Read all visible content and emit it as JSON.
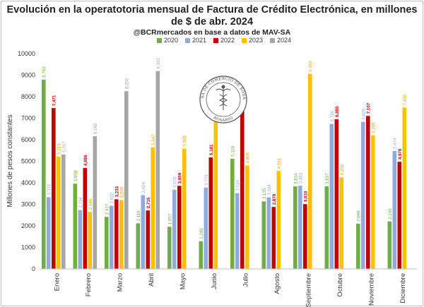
{
  "chart_data": {
    "type": "bar",
    "title": "Evolución en la operatotoria mensual de Factura de Crédito Electrónica, en millones de $ de abr. 2024",
    "subtitle": "@BCRmercados en base a datos de MAV-SA",
    "ylabel": "Millones de pesos constantes",
    "xlabel": "",
    "ylim": [
      0,
      10000
    ],
    "yticks": [
      "0",
      "1000",
      "2000",
      "3000",
      "4000",
      "5000",
      "6000",
      "7000",
      "8000",
      "9000",
      "10000"
    ],
    "grid": false,
    "legend_position": "top-center",
    "categories": [
      "Enero",
      "Febrero",
      "Marzo",
      "Abril",
      "Mayo",
      "Junio",
      "Julio",
      "Agosto",
      "Septiembre",
      "Octubre",
      "Noviembre",
      "Diciembre"
    ],
    "series": [
      {
        "name": "2020",
        "color": "#70ad47",
        "values": [
          8793,
          3958,
          2417,
          2116,
          1957,
          1286,
          5118,
          3135,
          3834,
          3837,
          2099,
          2206
        ],
        "labels": [
          "8,793",
          "3,958",
          "2,417",
          "2,116",
          "1,957",
          "1,286",
          "5,118",
          "3,135",
          "3,834",
          "3,837",
          "2,099",
          "2,206"
        ]
      },
      {
        "name": "2021",
        "color": "#8faadc",
        "values": [
          3331,
          2734,
          2932,
          3424,
          3678,
          3779,
          3519,
          3324,
          3863,
          6736,
          6829,
          5474
        ],
        "labels": [
          "3,331",
          "2,734",
          "2,932",
          "3,424",
          "3,678",
          "3,779",
          "3,519",
          "3,324",
          "3,863",
          "6,736",
          "6,829",
          "5,474"
        ]
      },
      {
        "name": "2022",
        "color": "#c00000",
        "values": [
          7471,
          4686,
          3233,
          2715,
          3859,
          5181,
          7600,
          2878,
          3010,
          6955,
          7107,
          4978
        ],
        "labels": [
          "7,471",
          "4,686",
          "3,233",
          "2,715",
          "3,859",
          "5,181",
          "7,600",
          "2,878",
          "3,010",
          "6,955",
          "7,107",
          "4,978"
        ]
      },
      {
        "name": "2023",
        "color": "#ffc000",
        "values": [
          5219,
          2646,
          3200,
          5647,
          5588,
          7045,
          4806,
          4551,
          9059,
          4252,
          6206,
          7495
        ],
        "labels": [
          "5,219",
          "2,646",
          "3,200",
          "5,647",
          "5,588",
          "",
          "4,806",
          "4,551",
          "9,059",
          "4,252",
          "6,206",
          "7,495"
        ]
      },
      {
        "name": "2024",
        "color": "#a6a6a6",
        "values": [
          5317,
          6163,
          8256,
          9193,
          null,
          null,
          null,
          null,
          null,
          null,
          null,
          null
        ],
        "labels": [
          "5,317",
          "6,163",
          "8,256",
          "9,193",
          "",
          "",
          "",
          "",
          "",
          "",
          "",
          ""
        ]
      }
    ]
  },
  "logo": {
    "text_top": "BOLSA DE COMERCIO DE ROSARIO",
    "text_bottom": "ROSARIO"
  }
}
